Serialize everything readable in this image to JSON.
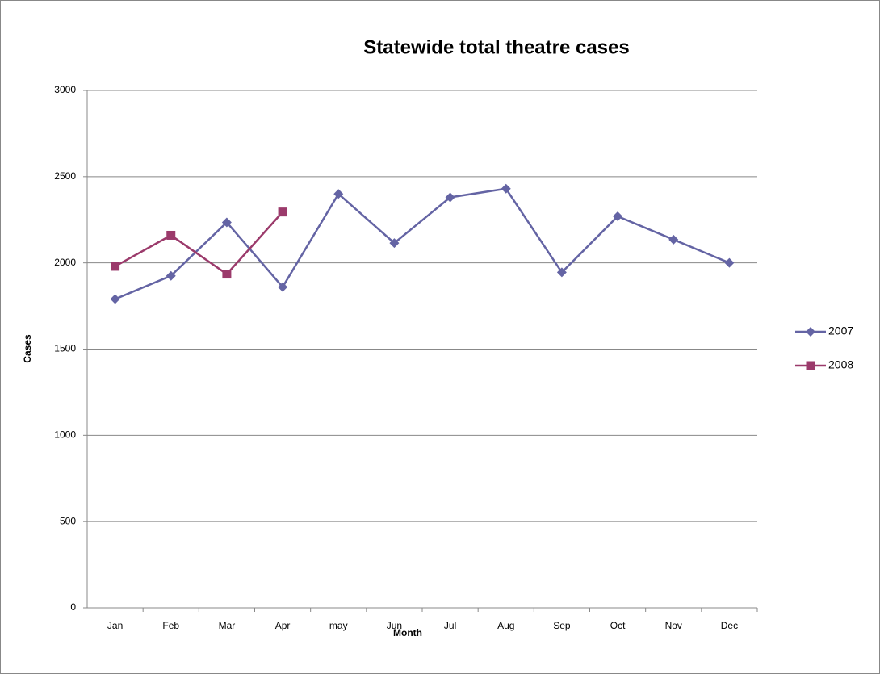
{
  "chart_data": {
    "type": "line",
    "title": "Statewide total theatre cases",
    "x_label": "Month",
    "y_label": "Cases",
    "categories": [
      "Jan",
      "Feb",
      "Mar",
      "Apr",
      "may",
      "Jun",
      "Jul",
      "Aug",
      "Sep",
      "Oct",
      "Nov",
      "Dec"
    ],
    "series": [
      {
        "name": "2007",
        "color": "#6464a4",
        "marker": "diamond",
        "values": [
          1790,
          1925,
          2235,
          1860,
          2400,
          2115,
          2380,
          2430,
          1945,
          2270,
          2135,
          2000
        ]
      },
      {
        "name": "2008",
        "color": "#9b3a6b",
        "marker": "square",
        "values": [
          1980,
          2160,
          1935,
          2295,
          null,
          null,
          null,
          null,
          null,
          null,
          null,
          null
        ]
      }
    ],
    "ylim": [
      0,
      3000
    ],
    "yticks": [
      0,
      500,
      1000,
      1500,
      2000,
      2500,
      3000
    ],
    "grid": true,
    "legend": "right"
  }
}
